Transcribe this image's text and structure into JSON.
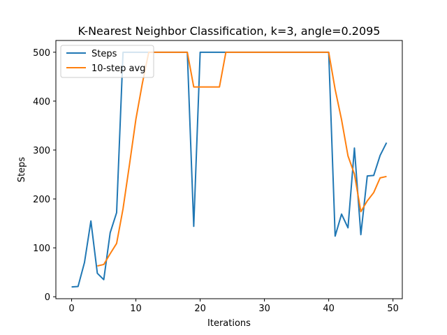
{
  "chart_data": {
    "type": "line",
    "title": "K-Nearest Neighbor Classification, k=3, angle=0.2095",
    "xlabel": "Iterations",
    "ylabel": "Steps",
    "xlim": [
      -2.45,
      51.45
    ],
    "ylim": [
      -4,
      524
    ],
    "xticks": [
      0,
      10,
      20,
      30,
      40,
      50
    ],
    "yticks": [
      0,
      100,
      200,
      300,
      400,
      500
    ],
    "grid": false,
    "legend_position": "top-left",
    "series": [
      {
        "name": "Steps",
        "color": "#1f77b4",
        "x": [
          0,
          1,
          2,
          3,
          4,
          5,
          6,
          7,
          8,
          9,
          10,
          11,
          12,
          13,
          14,
          15,
          16,
          17,
          18,
          19,
          20,
          21,
          22,
          23,
          24,
          25,
          26,
          27,
          28,
          29,
          30,
          31,
          32,
          33,
          34,
          35,
          36,
          37,
          38,
          39,
          40,
          41,
          42,
          43,
          44,
          45,
          46,
          47,
          48,
          49
        ],
        "values": [
          20,
          21,
          70,
          155,
          48,
          35,
          131,
          172,
          500,
          500,
          500,
          500,
          500,
          500,
          500,
          500,
          500,
          500,
          500,
          144,
          500,
          500,
          500,
          500,
          500,
          500,
          500,
          500,
          500,
          500,
          500,
          500,
          500,
          500,
          500,
          500,
          500,
          500,
          500,
          500,
          500,
          124,
          169,
          141,
          304,
          127,
          247,
          248,
          289,
          315
        ]
      },
      {
        "name": "10-step avg",
        "color": "#ff7f0e",
        "x": [
          4,
          5,
          6,
          7,
          8,
          9,
          10,
          11,
          12,
          13,
          14,
          15,
          16,
          17,
          18,
          19,
          20,
          21,
          22,
          23,
          24,
          25,
          26,
          27,
          28,
          29,
          30,
          31,
          32,
          33,
          34,
          35,
          36,
          37,
          38,
          39,
          40,
          41,
          42,
          43,
          44,
          45,
          46,
          47,
          48,
          49
        ],
        "values": [
          63,
          66,
          88,
          109,
          180,
          270,
          363,
          436,
          500,
          500,
          500,
          500,
          500,
          500,
          500,
          429,
          429,
          429,
          429,
          429,
          500,
          500,
          500,
          500,
          500,
          500,
          500,
          500,
          500,
          500,
          500,
          500,
          500,
          500,
          500,
          500,
          500,
          424,
          362,
          288,
          251,
          174,
          196,
          213,
          243,
          246
        ]
      }
    ]
  }
}
